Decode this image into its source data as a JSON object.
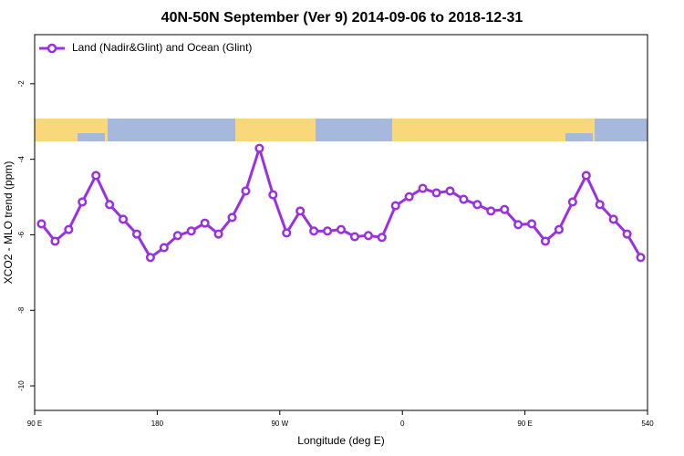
{
  "chart_data": {
    "type": "line",
    "title": "40N-50N September (Ver 9)   2014-09-06 to 2018-12-31",
    "x_label": "Longitude (deg E)",
    "y_label": "XCO2 - MLO trend (ppm)",
    "x": [
      95,
      105,
      115,
      125,
      135,
      145,
      155,
      165,
      175,
      185,
      195,
      205,
      215,
      225,
      235,
      245,
      255,
      265,
      275,
      285,
      295,
      305,
      315,
      325,
      335,
      345,
      355,
      365,
      375,
      385,
      395,
      405,
      415,
      425,
      435,
      445,
      455,
      465,
      475,
      485,
      495,
      505,
      515,
      525,
      535
    ],
    "series": [
      {
        "name": "Land (Nadir&Glint) and Ocean (Glint)",
        "color": "#9b30e0",
        "values": [
          -5.71,
          -6.17,
          -5.86,
          -5.13,
          -4.43,
          -5.2,
          -5.59,
          -5.98,
          -6.6,
          -6.34,
          -6.02,
          -5.9,
          -5.69,
          -5.98,
          -5.54,
          -4.84,
          -3.71,
          -4.94,
          -5.95,
          -5.37,
          -5.9,
          -5.9,
          -5.86,
          -6.05,
          -6.02,
          -6.07,
          -5.23,
          -4.99,
          -4.77,
          -4.89,
          -4.84,
          -5.06,
          -5.2,
          -5.37,
          -5.33,
          -5.73,
          -5.71,
          -6.17,
          -5.86,
          -5.13,
          -4.43,
          -5.2,
          -5.59,
          -5.98,
          -6.6
        ]
      }
    ],
    "xlim": [
      90,
      540
    ],
    "xticks": [
      {
        "value": 90,
        "label": "90 E"
      },
      180,
      {
        "value": 270,
        "label": "90 W"
      },
      {
        "value": 360,
        "label": "0"
      },
      {
        "value": 450,
        "label": "90 E"
      },
      540
    ],
    "ylim": [
      -10.65,
      -0.7
    ],
    "yticks": [
      -2,
      -4,
      -6,
      -8,
      -10
    ],
    "legend": "top-left"
  }
}
